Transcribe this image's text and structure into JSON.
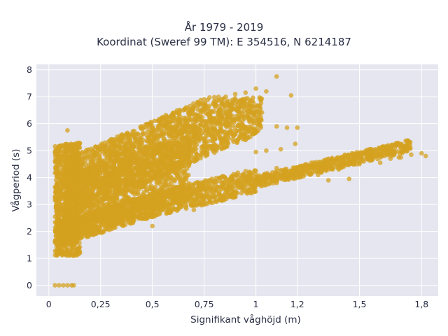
{
  "chart_data": {
    "type": "scatter",
    "title": "År 1979 - 2019",
    "subtitle": "Koordinat (Sweref 99 TM): E 354516, N 6214187",
    "xlabel": "Signifikant våghöjd (m)",
    "ylabel": "Vågperiod (s)",
    "xlim": [
      -0.06,
      1.88
    ],
    "ylim": [
      -0.4,
      8.2
    ],
    "x_ticks": [
      0,
      0.25,
      0.5,
      0.75,
      1,
      1.2,
      1.5,
      1.8
    ],
    "x_tick_labels": [
      "0",
      "0,25",
      "0,5",
      "0,75",
      "1",
      "1,2",
      "1,5",
      "1,8"
    ],
    "y_ticks": [
      0,
      1,
      2,
      3,
      4,
      5,
      6,
      7,
      8
    ],
    "y_tick_labels": [
      "0",
      "1",
      "2",
      "3",
      "4",
      "5",
      "6",
      "7",
      "8"
    ],
    "grid": true,
    "marker_color": "#d4a220",
    "background_color": "#e5e6ef",
    "points": [
      {
        "x": 0.03,
        "y": 0
      },
      {
        "x": 0.05,
        "y": 0
      },
      {
        "x": 0.07,
        "y": 0
      },
      {
        "x": 0.09,
        "y": 0
      },
      {
        "x": 0.11,
        "y": 0
      },
      {
        "x": 0.12,
        "y": 0
      },
      {
        "x": 0.03,
        "y": 1.6
      },
      {
        "x": 0.05,
        "y": 1.3
      },
      {
        "x": 0.08,
        "y": 1.15
      },
      {
        "x": 0.12,
        "y": 1.1
      },
      {
        "x": 0.15,
        "y": 1.2
      },
      {
        "x": 0.1,
        "y": 3.5
      },
      {
        "x": 0.1,
        "y": 5.2
      },
      {
        "x": 0.09,
        "y": 5.75
      },
      {
        "x": 0.2,
        "y": 3.9
      },
      {
        "x": 0.3,
        "y": 4.9
      },
      {
        "x": 0.45,
        "y": 5.9
      },
      {
        "x": 0.6,
        "y": 6.4
      },
      {
        "x": 0.75,
        "y": 6.9
      },
      {
        "x": 0.9,
        "y": 7.1
      },
      {
        "x": 0.95,
        "y": 7.15
      },
      {
        "x": 1.0,
        "y": 7.3
      },
      {
        "x": 1.05,
        "y": 7.2
      },
      {
        "x": 1.1,
        "y": 7.75
      },
      {
        "x": 1.17,
        "y": 7.05
      },
      {
        "x": 1.02,
        "y": 6.6
      },
      {
        "x": 1.1,
        "y": 5.9
      },
      {
        "x": 1.15,
        "y": 5.85
      },
      {
        "x": 1.2,
        "y": 5.85
      },
      {
        "x": 0.95,
        "y": 5.4
      },
      {
        "x": 1.0,
        "y": 4.95
      },
      {
        "x": 1.05,
        "y": 5.0
      },
      {
        "x": 1.12,
        "y": 5.05
      },
      {
        "x": 1.19,
        "y": 5.25
      },
      {
        "x": 0.82,
        "y": 6.0
      },
      {
        "x": 0.88,
        "y": 6.55
      },
      {
        "x": 0.5,
        "y": 2.2
      },
      {
        "x": 0.7,
        "y": 2.8
      },
      {
        "x": 0.9,
        "y": 3.4
      },
      {
        "x": 1.1,
        "y": 3.8
      },
      {
        "x": 1.3,
        "y": 4.1
      },
      {
        "x": 1.4,
        "y": 4.3
      },
      {
        "x": 1.5,
        "y": 4.5
      },
      {
        "x": 1.55,
        "y": 4.7
      },
      {
        "x": 1.6,
        "y": 4.75
      },
      {
        "x": 1.65,
        "y": 4.8
      },
      {
        "x": 1.7,
        "y": 4.75
      },
      {
        "x": 1.75,
        "y": 4.85
      },
      {
        "x": 1.8,
        "y": 4.9
      },
      {
        "x": 1.82,
        "y": 4.8
      },
      {
        "x": 1.69,
        "y": 4.75
      },
      {
        "x": 1.65,
        "y": 4.7
      },
      {
        "x": 1.6,
        "y": 4.55
      },
      {
        "x": 1.55,
        "y": 4.85
      },
      {
        "x": 1.45,
        "y": 3.95
      },
      {
        "x": 1.35,
        "y": 3.9
      },
      {
        "x": 1.0,
        "y": 4.25
      },
      {
        "x": 1.1,
        "y": 4.35
      },
      {
        "x": 0.4,
        "y": 3.0
      },
      {
        "x": 0.3,
        "y": 2.5
      },
      {
        "x": 0.2,
        "y": 2.1
      },
      {
        "x": 0.35,
        "y": 3.9
      },
      {
        "x": 0.5,
        "y": 4.4
      },
      {
        "x": 0.6,
        "y": 5.1
      },
      {
        "x": 0.7,
        "y": 5.5
      },
      {
        "x": 0.8,
        "y": 5.8
      }
    ]
  }
}
